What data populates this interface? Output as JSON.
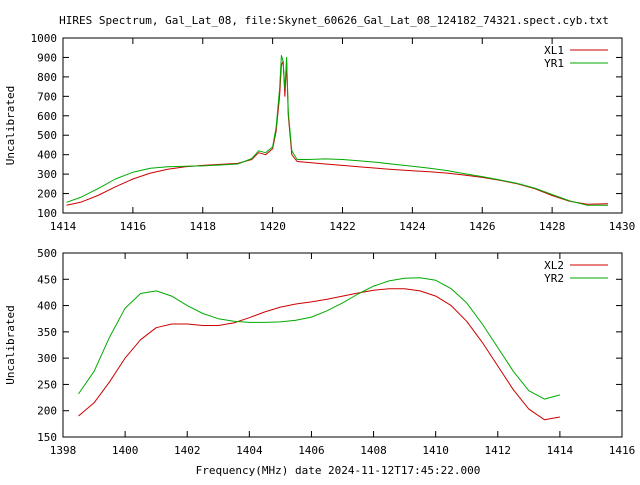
{
  "figure": {
    "title": "HIRES Spectrum, Gal_Lat_08, file:Skynet_60626_Gal_Lat_08_124182_74321.spect.cyb.txt",
    "footer_xlabel": "Frequency(MHz) date 2024-11-12T17:45:22.000"
  },
  "chart_data": [
    {
      "type": "line",
      "title": "HIRES Spectrum, Gal_Lat_08, file:Skynet_60626_Gal_Lat_08_124182_74321.spect.cyb.txt",
      "xlabel": "",
      "ylabel": "Uncalibrated",
      "xlim": [
        1414,
        1430
      ],
      "ylim": [
        100,
        1000
      ],
      "xticks": [
        1414,
        1416,
        1418,
        1420,
        1422,
        1424,
        1426,
        1428,
        1430
      ],
      "yticks": [
        100,
        200,
        300,
        400,
        500,
        600,
        700,
        800,
        900,
        1000
      ],
      "grid": false,
      "legend": "top-right",
      "series": [
        {
          "name": "XL1",
          "color": "#cc0000",
          "x": [
            1414.1,
            1414.5,
            1415.0,
            1415.5,
            1416.0,
            1416.5,
            1417.0,
            1417.5,
            1418.0,
            1418.5,
            1419.0,
            1419.4,
            1419.6,
            1419.8,
            1420.0,
            1420.1,
            1420.2,
            1420.25,
            1420.3,
            1420.35,
            1420.4,
            1420.45,
            1420.55,
            1420.7,
            1421.0,
            1421.5,
            1422.0,
            1422.5,
            1423.0,
            1423.5,
            1424.0,
            1424.5,
            1425.0,
            1425.5,
            1426.0,
            1426.5,
            1427.0,
            1427.5,
            1428.0,
            1428.5,
            1429.0,
            1429.6
          ],
          "y": [
            140,
            155,
            190,
            235,
            275,
            305,
            325,
            338,
            345,
            350,
            355,
            375,
            410,
            400,
            430,
            520,
            700,
            860,
            880,
            700,
            880,
            600,
            400,
            365,
            360,
            352,
            345,
            337,
            330,
            323,
            317,
            312,
            305,
            295,
            283,
            268,
            250,
            225,
            190,
            160,
            145,
            148
          ]
        },
        {
          "name": "YR1",
          "color": "#00aa00",
          "x": [
            1414.1,
            1414.5,
            1415.0,
            1415.5,
            1416.0,
            1416.5,
            1417.0,
            1417.5,
            1418.0,
            1418.5,
            1419.0,
            1419.4,
            1419.6,
            1419.8,
            1420.0,
            1420.1,
            1420.2,
            1420.25,
            1420.3,
            1420.35,
            1420.4,
            1420.45,
            1420.55,
            1420.7,
            1421.0,
            1421.5,
            1422.0,
            1422.5,
            1423.0,
            1423.5,
            1424.0,
            1424.5,
            1425.0,
            1425.5,
            1426.0,
            1426.5,
            1427.0,
            1427.5,
            1428.0,
            1428.5,
            1429.0,
            1429.6
          ],
          "y": [
            155,
            180,
            225,
            275,
            310,
            330,
            338,
            340,
            342,
            347,
            352,
            380,
            420,
            410,
            440,
            540,
            740,
            910,
            880,
            740,
            900,
            620,
            420,
            375,
            375,
            378,
            375,
            368,
            360,
            350,
            340,
            330,
            318,
            302,
            287,
            270,
            252,
            228,
            195,
            162,
            140,
            140
          ]
        }
      ]
    },
    {
      "type": "line",
      "title": "",
      "xlabel": "Frequency(MHz) date 2024-11-12T17:45:22.000",
      "ylabel": "Uncalibrated",
      "xlim": [
        1398,
        1416
      ],
      "ylim": [
        150,
        500
      ],
      "xticks": [
        1398,
        1400,
        1402,
        1404,
        1406,
        1408,
        1410,
        1412,
        1414,
        1416
      ],
      "yticks": [
        150,
        200,
        250,
        300,
        350,
        400,
        450,
        500
      ],
      "grid": false,
      "legend": "top-right",
      "series": [
        {
          "name": "XL2",
          "color": "#cc0000",
          "x": [
            1398.5,
            1399.0,
            1399.5,
            1400.0,
            1400.5,
            1401.0,
            1401.5,
            1402.0,
            1402.5,
            1403.0,
            1403.5,
            1404.0,
            1404.5,
            1405.0,
            1405.5,
            1406.0,
            1406.5,
            1407.0,
            1407.5,
            1408.0,
            1408.5,
            1409.0,
            1409.5,
            1410.0,
            1410.5,
            1411.0,
            1411.5,
            1412.0,
            1412.5,
            1413.0,
            1413.5,
            1414.0
          ],
          "y": [
            190,
            215,
            255,
            300,
            335,
            358,
            365,
            365,
            362,
            362,
            367,
            377,
            388,
            397,
            403,
            407,
            412,
            418,
            424,
            429,
            432,
            432,
            428,
            418,
            400,
            370,
            330,
            285,
            240,
            203,
            183,
            188
          ]
        },
        {
          "name": "YR2",
          "color": "#00aa00",
          "x": [
            1398.5,
            1399.0,
            1399.5,
            1400.0,
            1400.5,
            1401.0,
            1401.5,
            1402.0,
            1402.5,
            1403.0,
            1403.5,
            1404.0,
            1404.5,
            1405.0,
            1405.5,
            1406.0,
            1406.5,
            1407.0,
            1407.5,
            1408.0,
            1408.5,
            1409.0,
            1409.5,
            1410.0,
            1410.5,
            1411.0,
            1411.5,
            1412.0,
            1412.5,
            1413.0,
            1413.5,
            1414.0
          ],
          "y": [
            232,
            275,
            340,
            395,
            423,
            428,
            418,
            400,
            385,
            375,
            370,
            368,
            368,
            369,
            372,
            378,
            390,
            405,
            422,
            437,
            447,
            452,
            453,
            448,
            432,
            405,
            365,
            320,
            275,
            238,
            222,
            230
          ]
        }
      ]
    }
  ]
}
